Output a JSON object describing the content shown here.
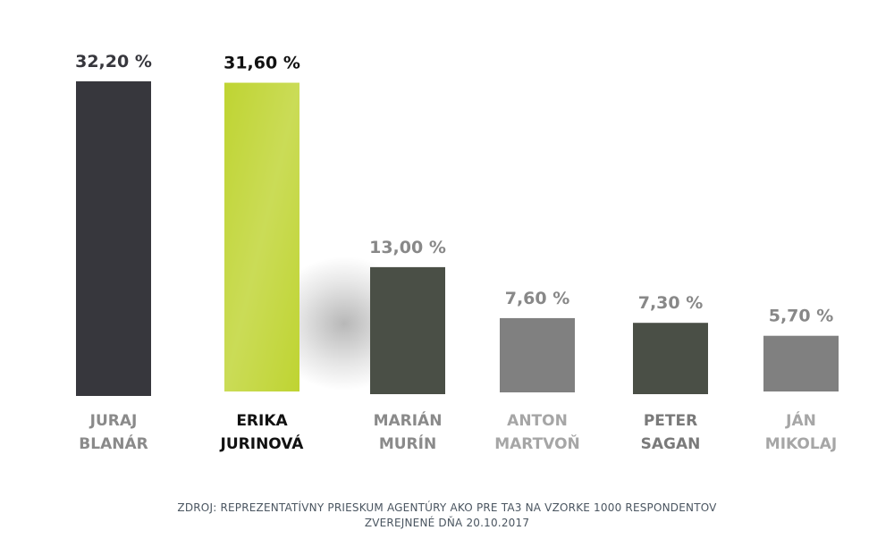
{
  "chart_data": {
    "type": "bar",
    "categories": [
      [
        "JURAJ",
        "BLANÁR"
      ],
      [
        "ERIKA",
        "JURINOVÁ"
      ],
      [
        "MARIÁN",
        "MURÍN"
      ],
      [
        "ANTON",
        "MARTVOŇ"
      ],
      [
        "PETER",
        "SAGAN"
      ],
      [
        "JÁN",
        "MIKOLAJ"
      ]
    ],
    "values": [
      32.2,
      31.6,
      13.0,
      7.6,
      7.3,
      5.7
    ],
    "value_labels": [
      "32,20 %",
      "31,60 %",
      "13,00 %",
      "7,60 %",
      "7,30 %",
      "5,70 %"
    ],
    "bar_colors": [
      "#37373d",
      "#bfd432",
      "#4a4f46",
      "#808080",
      "#4a4f46",
      "#808080"
    ],
    "value_label_colors": [
      "#37373d",
      "#111111",
      "#888888",
      "#888888",
      "#888888",
      "#888888"
    ],
    "category_label_colors": [
      "#8a8a8a",
      "#111111",
      "#8a8a8a",
      "#a6a6a6",
      "#7a7a7a",
      "#a6a6a6"
    ],
    "ylim": [
      0,
      32.2
    ],
    "grid": false,
    "legend": "none"
  },
  "source": {
    "line1": "ZDROJ: REPREZENTATÍVNY PRIESKUM AGENTÚRY AKO PRE TA3 NA VZORKE 1000 RESPONDENTOV",
    "line2": "ZVEREJNENÉ DŇA 20.10.2017"
  }
}
